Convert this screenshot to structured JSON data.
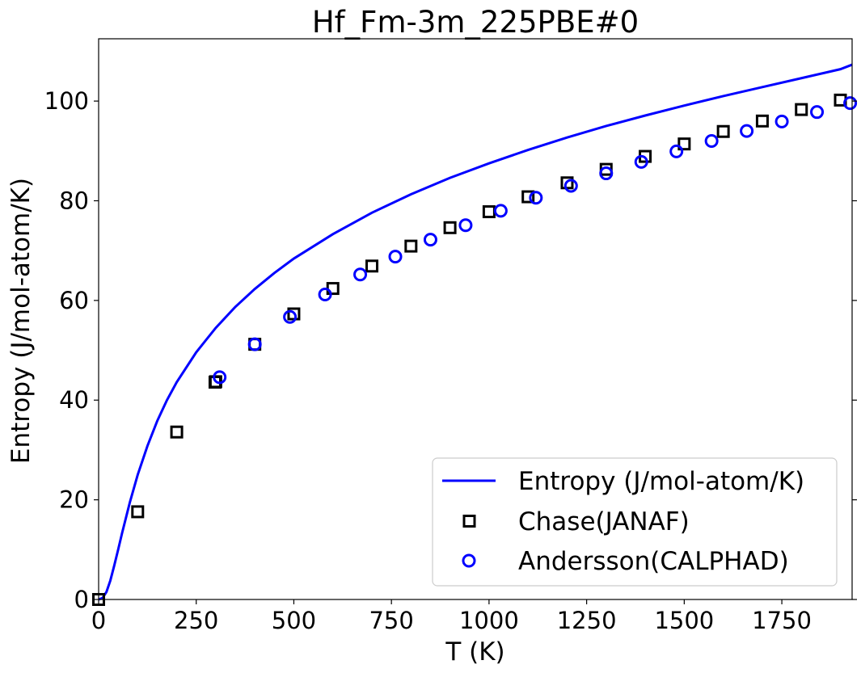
{
  "chart_data": {
    "type": "line",
    "title": "Hf_Fm-3m_225PBE#0",
    "xlabel": "T (K)",
    "ylabel": "Entropy (J/mol-atom/K)",
    "xlim": [
      0,
      1930
    ],
    "ylim": [
      0,
      112.5
    ],
    "xticks": [
      0,
      250,
      500,
      750,
      1000,
      1250,
      1500,
      1750
    ],
    "yticks": [
      0,
      20,
      40,
      60,
      80,
      100
    ],
    "grid": false,
    "legend_position": "bottom-right",
    "series": [
      {
        "name": "Entropy (J/mol-atom/K)",
        "style": "line",
        "color": "#0000ff",
        "x": [
          0,
          10,
          20,
          30,
          40,
          50,
          60,
          80,
          100,
          125,
          150,
          175,
          200,
          250,
          300,
          350,
          400,
          450,
          500,
          600,
          700,
          800,
          900,
          1000,
          1100,
          1200,
          1300,
          1400,
          1500,
          1600,
          1700,
          1800,
          1900,
          1930
        ],
        "y": [
          0,
          0.3,
          1.5,
          3.8,
          6.8,
          10.0,
          13.3,
          19.5,
          25.0,
          30.8,
          35.8,
          40.0,
          43.6,
          49.6,
          54.5,
          58.7,
          62.3,
          65.5,
          68.4,
          73.3,
          77.6,
          81.3,
          84.6,
          87.5,
          90.2,
          92.7,
          95.0,
          97.1,
          99.1,
          101.0,
          102.8,
          104.6,
          106.4,
          107.3
        ]
      },
      {
        "name": "Chase(JANAF)",
        "style": "square",
        "color": "#000000",
        "x": [
          0,
          100,
          200,
          298.15,
          300,
          400,
          500,
          600,
          700,
          800,
          900,
          1000,
          1100,
          1200,
          1300,
          1400,
          1500,
          1600,
          1700,
          1800,
          1900
        ],
        "y": [
          0,
          17.6,
          33.6,
          43.6,
          43.7,
          51.2,
          57.3,
          62.4,
          66.9,
          70.9,
          74.6,
          77.8,
          80.8,
          83.6,
          86.3,
          88.9,
          91.4,
          93.9,
          96.0,
          98.3,
          100.2
        ]
      },
      {
        "name": "Andersson(CALPHAD)",
        "style": "circle",
        "color": "#0000ff",
        "x": [
          310,
          400,
          490,
          580,
          670,
          760,
          850,
          940,
          1030,
          1120,
          1210,
          1300,
          1390,
          1480,
          1570,
          1660,
          1750,
          1840,
          1925
        ],
        "y": [
          44.6,
          51.2,
          56.7,
          61.2,
          65.2,
          68.8,
          72.2,
          75.1,
          78.0,
          80.6,
          83.0,
          85.5,
          87.8,
          89.9,
          92.0,
          94.0,
          95.9,
          97.8,
          99.6
        ]
      }
    ]
  }
}
